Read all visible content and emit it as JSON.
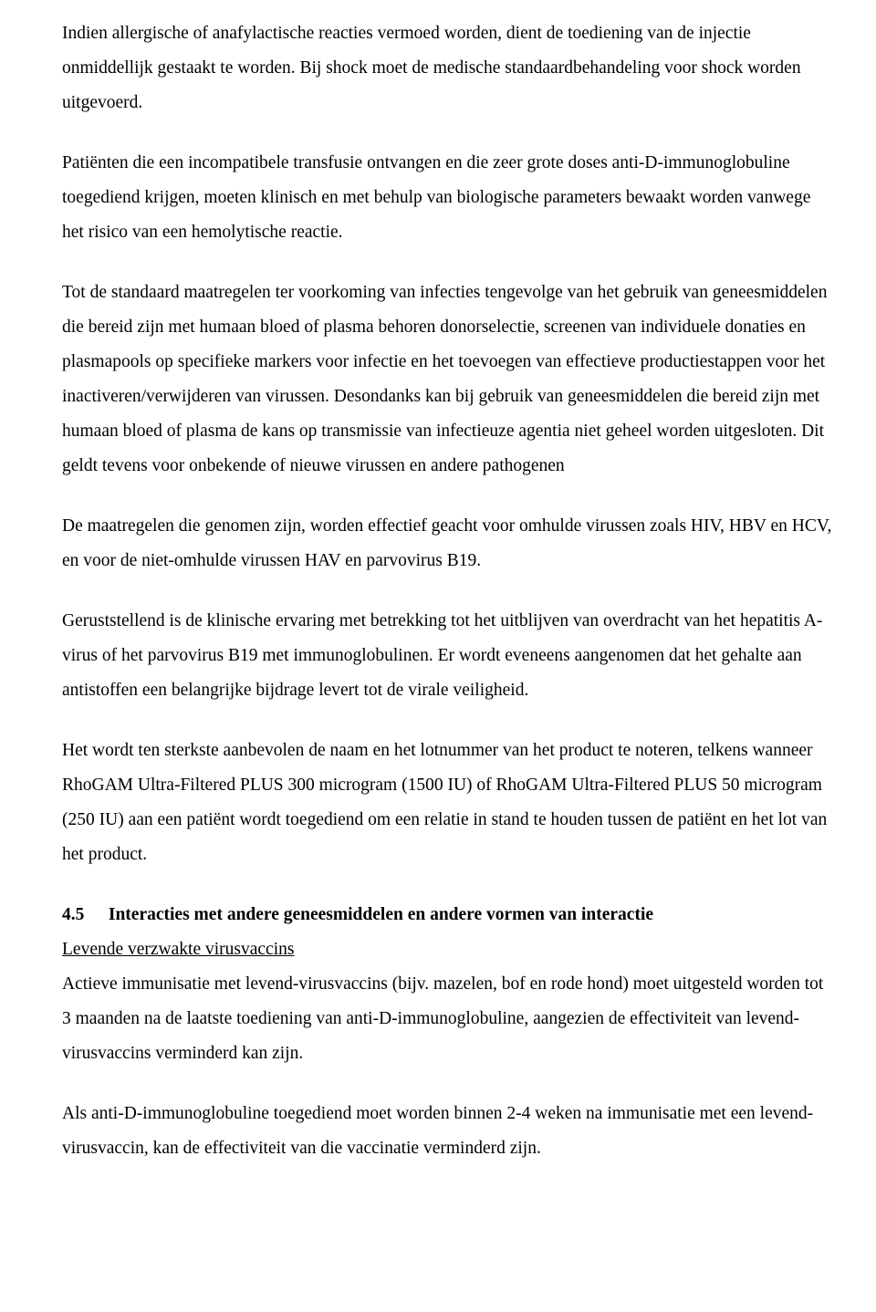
{
  "paragraphs": {
    "p1": "Indien allergische of anafylactische reacties vermoed worden, dient de toediening van de injectie onmiddellijk gestaakt te worden. Bij shock moet de medische standaardbehandeling voor shock worden uitgevoerd.",
    "p2": "Patiënten die een incompatibele transfusie ontvangen en die zeer grote doses anti-D-immunoglobuline toegediend krijgen, moeten klinisch en met behulp van biologische parameters bewaakt worden vanwege het risico van een hemolytische reactie.",
    "p3": "Tot de standaard maatregelen ter voorkoming van infecties tengevolge van het gebruik van geneesmiddelen die bereid zijn met humaan bloed of plasma behoren donorselectie, screenen van individuele donaties en plasmapools op specifieke markers voor infectie en het toevoegen van effectieve productiestappen voor het inactiveren/verwijderen van virussen. Desondanks kan bij gebruik van geneesmiddelen die bereid zijn met humaan bloed of plasma de kans op transmissie van infectieuze agentia niet geheel worden uitgesloten. Dit geldt tevens voor onbekende of nieuwe virussen en andere pathogenen",
    "p4": "De maatregelen die genomen zijn, worden effectief geacht voor omhulde virussen zoals HIV, HBV en HCV, en voor de niet-omhulde virussen HAV en parvovirus B19.",
    "p5": "Geruststellend is de klinische ervaring met betrekking tot het uitblijven van overdracht van het hepatitis A-virus of het parvovirus B19 met immunoglobulinen. Er wordt eveneens aangenomen dat het gehalte aan antistoffen een belangrijke bijdrage levert tot de virale veiligheid.",
    "p6": "Het wordt ten sterkste aanbevolen de naam en het lotnummer van het product te noteren, telkens wanneer RhoGAM Ultra-Filtered PLUS 300 microgram (1500 IU) of RhoGAM Ultra-Filtered PLUS 50 microgram (250 IU) aan een patiënt wordt toegediend om een relatie in stand te houden tussen de patiënt en het lot van het product.",
    "section_4_5_number": "4.5",
    "section_4_5_title": "Interacties met andere geneesmiddelen en andere vormen van interactie",
    "subhead_vaccines": "Levende verzwakte virusvaccins",
    "p7": "Actieve immunisatie met levend-virusvaccins (bijv. mazelen, bof en rode hond) moet uitgesteld worden tot 3 maanden na de laatste toediening van anti-D-immunoglobuline, aangezien de effectiviteit van levend-virusvaccins verminderd kan zijn.",
    "p8": "Als anti-D-immunoglobuline toegediend moet worden binnen 2-4 weken na immunisatie met een levend-virusvaccin, kan de effectiviteit van die vaccinatie verminderd zijn."
  }
}
